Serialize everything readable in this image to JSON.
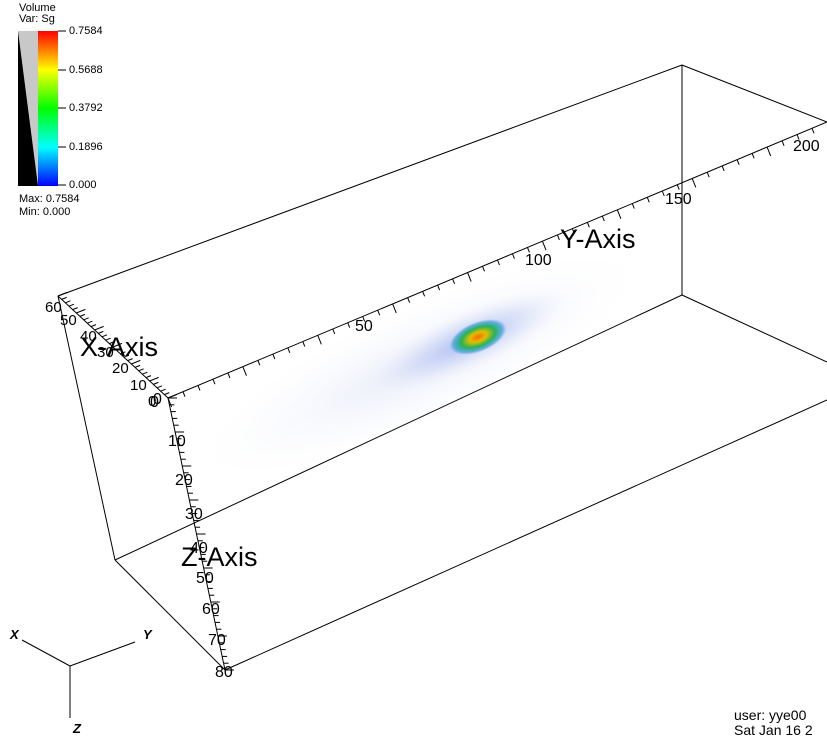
{
  "legend": {
    "title": "Volume",
    "variable": "Var: Sg",
    "max_text": "Max: 0.7584",
    "min_text": "Min: 0.000",
    "colorbar_ticks": [
      "0.7584",
      "0.5688",
      "0.3792",
      "0.1896",
      "0.000"
    ],
    "colormap": [
      "#ff0000",
      "#ffff00",
      "#00ff00",
      "#00ffff",
      "#0000ff"
    ]
  },
  "axes": {
    "x_title": "X-Axis",
    "y_title": "Y-Axis",
    "z_title": "Z-Axis",
    "x_ticks": [
      "0",
      "10",
      "20",
      "30",
      "40",
      "50",
      "60"
    ],
    "y_ticks": [
      "0",
      "50",
      "100",
      "150",
      "200"
    ],
    "z_ticks": [
      "0",
      "10",
      "20",
      "30",
      "40",
      "50",
      "60",
      "70",
      "80"
    ]
  },
  "triad": {
    "x": "X",
    "y": "Y",
    "z": "Z"
  },
  "footer": {
    "user": "user: yye00",
    "date": "Sat Jan 16 2"
  }
}
